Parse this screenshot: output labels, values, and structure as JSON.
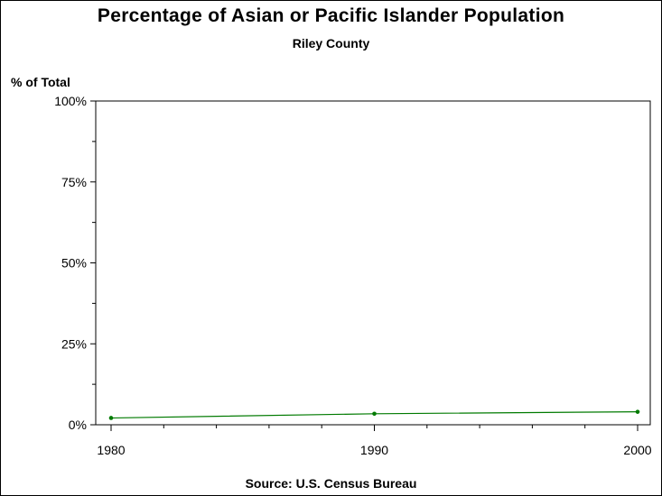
{
  "chart_data": {
    "type": "line",
    "title": "Percentage of Asian or Pacific Islander Population",
    "subtitle": "Riley County",
    "ylabel": "% of Total",
    "source": "Source: U.S. Census Bureau",
    "x": [
      1980,
      1990,
      2000
    ],
    "xticks": [
      "1980",
      "1990",
      "2000"
    ],
    "xlim": [
      1980,
      2000
    ],
    "ylim": [
      0,
      100
    ],
    "yticks": [
      "0%",
      "25%",
      "50%",
      "75%",
      "100%"
    ],
    "ytick_values": [
      0,
      25,
      50,
      75,
      100
    ],
    "grid": false,
    "series": [
      {
        "values": [
          2.1,
          3.4,
          4.0
        ],
        "color": "#007a00"
      }
    ]
  }
}
